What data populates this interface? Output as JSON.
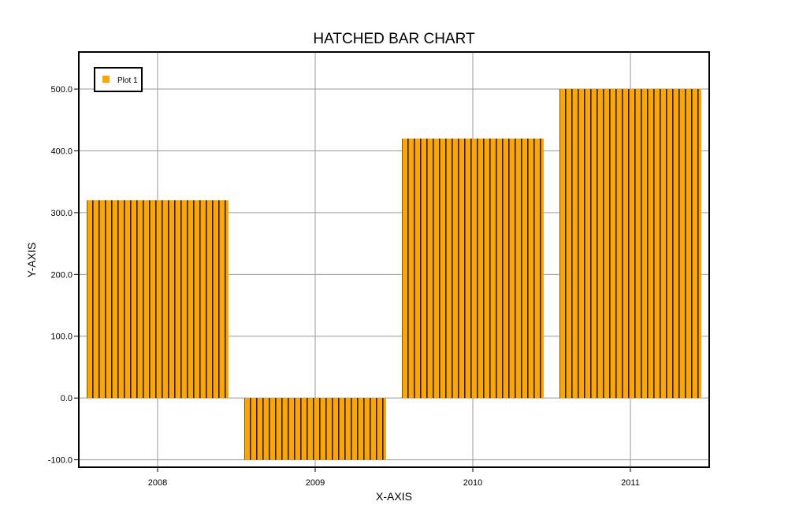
{
  "chart_data": {
    "type": "bar",
    "title": "HATCHED BAR CHART",
    "xlabel": "X-AXIS",
    "ylabel": "Y-AXIS",
    "categories": [
      "2008",
      "2009",
      "2010",
      "2011"
    ],
    "series": [
      {
        "name": "Plot 1",
        "values": [
          320,
          -100,
          420,
          500
        ]
      }
    ],
    "ylim": [
      -112,
      560
    ],
    "yticks": [
      -100,
      0,
      100,
      200,
      300,
      400,
      500
    ],
    "ytick_labels": [
      "-100.0",
      "0.0",
      "100.0",
      "200.0",
      "300.0",
      "400.0",
      "500.0"
    ],
    "grid": true,
    "legend": "top-left",
    "bar_color": "#FFA500",
    "hatch": "vertical",
    "hatch_color": "#222222"
  }
}
